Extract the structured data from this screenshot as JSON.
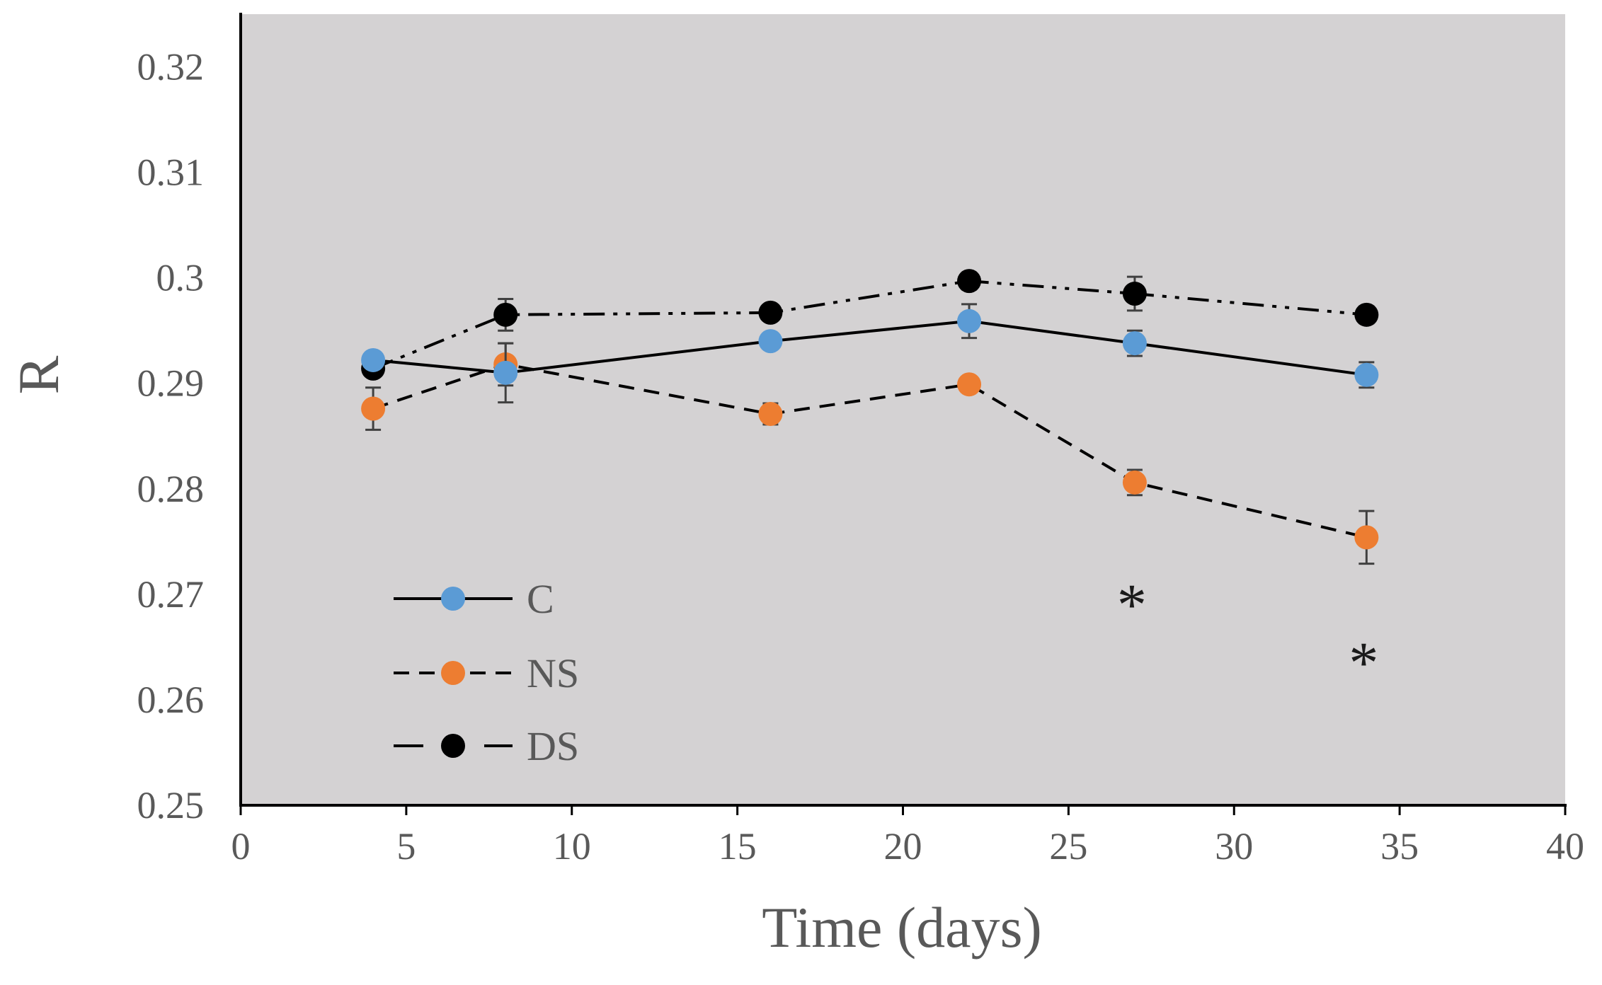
{
  "chart_data": {
    "type": "line",
    "title": "",
    "xlabel": "Time (days)",
    "ylabel": "R",
    "xlim": [
      0,
      40
    ],
    "ylim": [
      0.25,
      0.325
    ],
    "xticks": [
      0,
      5,
      10,
      15,
      20,
      25,
      30,
      35,
      40
    ],
    "xtick_labels": [
      "0",
      "5",
      "10",
      "15",
      "20",
      "25",
      "30",
      "35",
      "40"
    ],
    "yticks": [
      0.25,
      0.26,
      0.27,
      0.28,
      0.29,
      0.3,
      0.31,
      0.32
    ],
    "ytick_labels": [
      "0.25",
      "0.26",
      "0.27",
      "0.28",
      "0.29",
      "0.3",
      "0.31",
      "0.32"
    ],
    "plot_background": "#d4d2d3",
    "grid": false,
    "legend_position": "bottom-left",
    "series": [
      {
        "name": "C",
        "color": "#5b9bd5",
        "line_style": "solid",
        "x": [
          4,
          8,
          16,
          22,
          27,
          34
        ],
        "y": [
          0.2922,
          0.291,
          0.294,
          0.2959,
          0.2938,
          0.2908
        ],
        "error": [
          0.0005,
          0.0028,
          0.0005,
          0.0016,
          0.0012,
          0.0012
        ]
      },
      {
        "name": "NS",
        "color": "#ed7d31",
        "line_style": "dashed",
        "x": [
          4,
          8,
          16,
          22,
          27,
          34
        ],
        "y": [
          0.2876,
          0.2918,
          0.2871,
          0.2899,
          0.2806,
          0.2754
        ],
        "error": [
          0.002,
          0.002,
          0.001,
          0.0005,
          0.0012,
          0.0025
        ]
      },
      {
        "name": "DS",
        "color": "#000000",
        "line_style": "dash-dot-dot",
        "x": [
          4,
          8,
          16,
          22,
          27,
          34
        ],
        "y": [
          0.2914,
          0.2965,
          0.2967,
          0.2997,
          0.2985,
          0.2965
        ],
        "error": [
          0.0005,
          0.0015,
          0.0005,
          0.0008,
          0.0016,
          0.0008
        ]
      }
    ],
    "annotations": [
      {
        "text": "*",
        "x": 27,
        "y": 0.2705
      },
      {
        "text": "*",
        "x": 34,
        "y": 0.265
      }
    ]
  }
}
